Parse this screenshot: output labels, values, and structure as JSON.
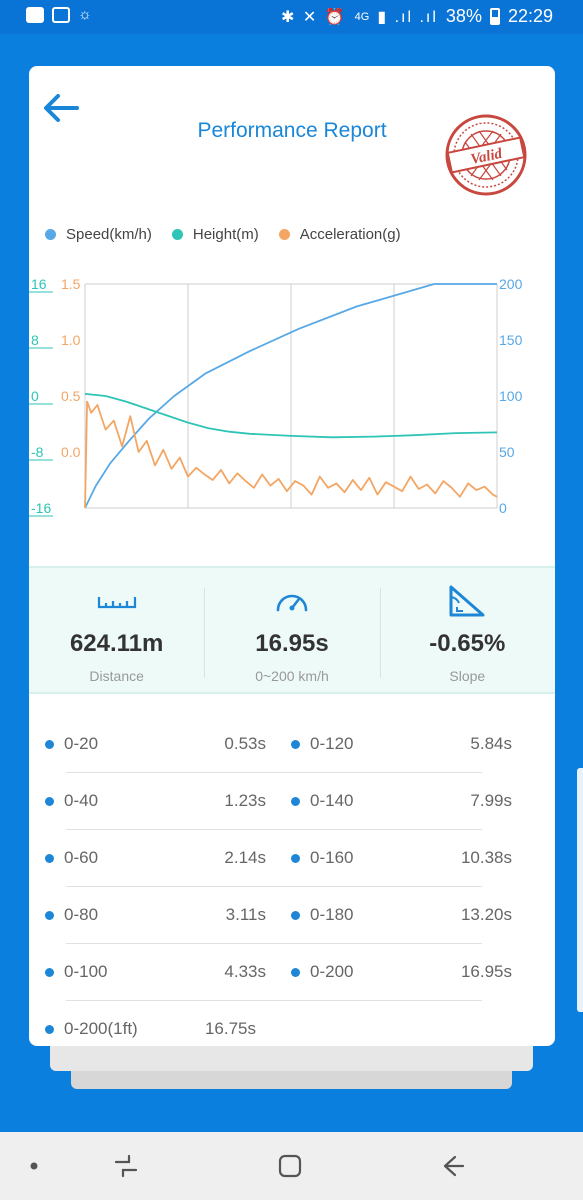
{
  "status_bar": {
    "battery": "38%",
    "time": "22:29",
    "network": "4G"
  },
  "header": {
    "title": "Performance Report",
    "stamp_text": "Valid"
  },
  "legend": [
    {
      "label": "Speed(km/h)",
      "color": "#57a8e6"
    },
    {
      "label": "Height(m)",
      "color": "#2ec4b6"
    },
    {
      "label": "Acceleration(g)",
      "color": "#f3a664"
    }
  ],
  "chart_data": {
    "type": "line",
    "left_axis_height": {
      "ticks": [
        "16",
        "8",
        "0",
        "-8",
        "-16"
      ],
      "ylim": [
        -16,
        16
      ],
      "color": "#2ec4b6"
    },
    "left_axis_accel": {
      "ticks": [
        "1.5",
        "1.0",
        "0.5",
        "0.0"
      ],
      "ylim": [
        0,
        1.5
      ],
      "color": "#f3a664"
    },
    "right_axis_speed": {
      "ticks": [
        "200",
        "150",
        "100",
        "50",
        "0"
      ],
      "ylim": [
        0,
        200
      ],
      "color": "#57a8e6"
    },
    "grid": true,
    "x_range": [
      0,
      20
    ],
    "series": [
      {
        "name": "Speed(km/h)",
        "axis": "speed",
        "color": "#57a8e6",
        "x": [
          0,
          0.53,
          1.23,
          2.14,
          3.11,
          4.33,
          5.84,
          7.99,
          10.38,
          13.2,
          16.95,
          20
        ],
        "y": [
          0,
          20,
          40,
          60,
          80,
          100,
          120,
          140,
          160,
          180,
          200,
          210
        ]
      },
      {
        "name": "Height(m)",
        "axis": "height",
        "color": "#2ec4b6",
        "x": [
          0,
          1,
          2,
          3,
          4,
          5,
          6,
          7,
          8,
          10,
          12,
          14,
          16,
          18,
          20
        ],
        "y": [
          0.3,
          0,
          -0.8,
          -1.8,
          -2.8,
          -3.8,
          -4.6,
          -5.1,
          -5.4,
          -5.7,
          -5.9,
          -5.8,
          -5.6,
          -5.3,
          -5.2
        ]
      },
      {
        "name": "Acceleration(g)",
        "axis": "accel",
        "color": "#f3a664",
        "x": [
          0,
          0.1,
          0.3,
          0.6,
          1.0,
          1.4,
          1.8,
          2.2,
          2.6,
          3.0,
          3.4,
          3.8,
          4.2,
          4.6,
          5.0,
          5.4,
          5.8,
          6.2,
          6.6,
          7.0,
          7.4,
          7.8,
          8.2,
          8.6,
          9.0,
          9.4,
          9.8,
          10.2,
          10.6,
          11.0,
          11.4,
          11.8,
          12.2,
          12.6,
          13.0,
          13.4,
          13.8,
          14.2,
          14.6,
          15.0,
          15.4,
          15.8,
          16.2,
          16.6,
          17.0,
          17.4,
          17.8,
          18.2,
          18.6,
          19.0,
          19.4,
          19.8,
          20
        ],
        "y": [
          0.0,
          0.95,
          0.85,
          0.92,
          0.7,
          0.78,
          0.55,
          0.82,
          0.5,
          0.6,
          0.38,
          0.52,
          0.35,
          0.45,
          0.28,
          0.36,
          0.3,
          0.25,
          0.34,
          0.22,
          0.31,
          0.24,
          0.18,
          0.3,
          0.2,
          0.26,
          0.15,
          0.24,
          0.2,
          0.12,
          0.28,
          0.18,
          0.22,
          0.14,
          0.25,
          0.16,
          0.27,
          0.12,
          0.23,
          0.19,
          0.15,
          0.28,
          0.17,
          0.21,
          0.13,
          0.24,
          0.18,
          0.1,
          0.22,
          0.16,
          0.19,
          0.12,
          0.1
        ]
      }
    ]
  },
  "stats": [
    {
      "value": "624.11m",
      "label": "Distance",
      "icon": "ruler-icon"
    },
    {
      "value": "16.95s",
      "label": "0~200 km/h",
      "icon": "speedometer-icon"
    },
    {
      "value": "-0.65%",
      "label": "Slope",
      "icon": "slope-icon"
    }
  ],
  "splits": [
    {
      "label": "0-20",
      "time": "0.53s"
    },
    {
      "label": "0-120",
      "time": "5.84s"
    },
    {
      "label": "0-40",
      "time": "1.23s"
    },
    {
      "label": "0-140",
      "time": "7.99s"
    },
    {
      "label": "0-60",
      "time": "2.14s"
    },
    {
      "label": "0-160",
      "time": "10.38s"
    },
    {
      "label": "0-80",
      "time": "3.11s"
    },
    {
      "label": "0-180",
      "time": "13.20s"
    },
    {
      "label": "0-100",
      "time": "4.33s"
    },
    {
      "label": "0-200",
      "time": "16.95s"
    },
    {
      "label": "0-200(1ft)",
      "time": "16.75s"
    }
  ],
  "colors": {
    "primary": "#0a7fdd",
    "title": "#1a86d8",
    "stats_bg": "#eefaf8",
    "stamp": "#c8473f"
  }
}
